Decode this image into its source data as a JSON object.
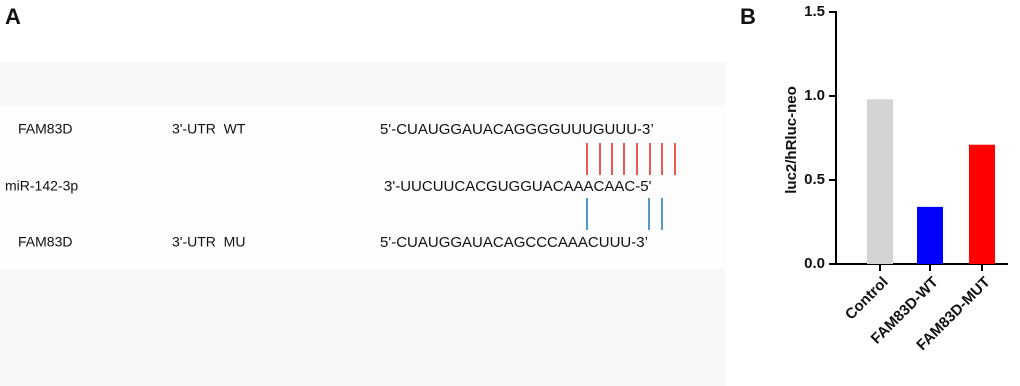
{
  "panel_a": {
    "label": "A",
    "rows": [
      {
        "gene": "FAM83D",
        "region": "3'-UTR  WT",
        "sequence": "5'-CUAUGGAUACAGGGGUUUGUUU-3’"
      },
      {
        "gene": "miR-142-3p",
        "sequence": "3'-UUCUUCACGUGGUACAAACAAC-5'"
      },
      {
        "gene": "FAM83D",
        "region": "3'-UTR  MU",
        "sequence": "5'-CUAUGGAUACAGCCCAAACUUU-3’"
      }
    ]
  },
  "chart_data": {
    "type": "bar",
    "panel_label": "B",
    "ylabel": "luc2/hRluc-neo",
    "categories": [
      "Control",
      "FAM83D-WT",
      "FAM83D-MUT"
    ],
    "values": [
      0.98,
      0.34,
      0.71
    ],
    "colors": [
      "#d3d3d3",
      "#0000ff",
      "#ff0000"
    ],
    "ylim": [
      0,
      1.5
    ],
    "yticks": [
      {
        "value": 0,
        "label": "0.0"
      },
      {
        "value": 0.5,
        "label": "0.5"
      },
      {
        "value": 1,
        "label": "1.0"
      },
      {
        "value": 1.5,
        "label": "1.5"
      }
    ]
  }
}
